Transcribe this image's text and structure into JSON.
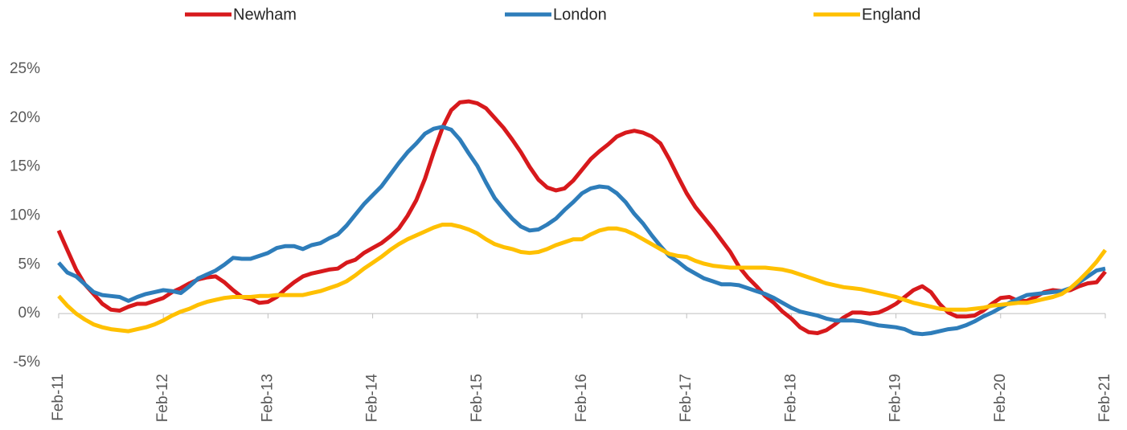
{
  "chart_data": {
    "type": "line",
    "categories": [
      "Feb-11",
      null,
      null,
      null,
      null,
      null,
      null,
      null,
      null,
      null,
      null,
      null,
      "Feb-12",
      null,
      null,
      null,
      null,
      null,
      null,
      null,
      null,
      null,
      null,
      null,
      "Feb-13",
      null,
      null,
      null,
      null,
      null,
      null,
      null,
      null,
      null,
      null,
      null,
      "Feb-14",
      null,
      null,
      null,
      null,
      null,
      null,
      null,
      null,
      null,
      null,
      null,
      "Feb-15",
      null,
      null,
      null,
      null,
      null,
      null,
      null,
      null,
      null,
      null,
      null,
      "Feb-16",
      null,
      null,
      null,
      null,
      null,
      null,
      null,
      null,
      null,
      null,
      null,
      "Feb-17",
      null,
      null,
      null,
      null,
      null,
      null,
      null,
      null,
      null,
      null,
      null,
      "Feb-18",
      null,
      null,
      null,
      null,
      null,
      null,
      null,
      null,
      null,
      null,
      null,
      "Feb-19",
      null,
      null,
      null,
      null,
      null,
      null,
      null,
      null,
      null,
      null,
      null,
      "Feb-20",
      null,
      null,
      null,
      null,
      null,
      null,
      null,
      null,
      null,
      null,
      null,
      "Feb-21"
    ],
    "series": [
      {
        "name": "Newham",
        "color": "#d7191c",
        "values": [
          8.5,
          6.5,
          4.5,
          3,
          2,
          1,
          0.4,
          0.3,
          0.7,
          1,
          1,
          1.3,
          1.6,
          2.2,
          2.6,
          3.1,
          3.5,
          3.7,
          3.8,
          3.2,
          2.4,
          1.7,
          1.5,
          1.1,
          1.2,
          1.7,
          2.5,
          3.2,
          3.8,
          4.1,
          4.3,
          4.5,
          4.6,
          5.2,
          5.5,
          6.2,
          6.7,
          7.2,
          7.9,
          8.7,
          10,
          11.6,
          13.8,
          16.5,
          19,
          20.8,
          21.6,
          21.7,
          21.5,
          21,
          20,
          19,
          17.8,
          16.5,
          15,
          13.7,
          12.9,
          12.6,
          12.8,
          13.6,
          14.7,
          15.8,
          16.6,
          17.3,
          18.1,
          18.5,
          18.7,
          18.5,
          18.1,
          17.4,
          15.8,
          14,
          12.3,
          10.9,
          9.8,
          8.7,
          7.5,
          6.3,
          4.8,
          3.7,
          2.8,
          1.8,
          1.1,
          0.2,
          -0.5,
          -1.4,
          -1.9,
          -2,
          -1.7,
          -1.1,
          -0.4,
          0.1,
          0.1,
          0,
          0.1,
          0.5,
          1,
          1.7,
          2.4,
          2.8,
          2.2,
          1,
          0.1,
          -0.3,
          -0.3,
          -0.2,
          0.3,
          1,
          1.6,
          1.7,
          1.3,
          1.3,
          1.7,
          2.2,
          2.4,
          2.3,
          2.4,
          2.8,
          3.1,
          3.2,
          4.3
        ]
      },
      {
        "name": "London",
        "color": "#2e7dba",
        "values": [
          5.2,
          4.2,
          3.8,
          3,
          2.2,
          1.9,
          1.8,
          1.7,
          1.3,
          1.7,
          2,
          2.2,
          2.4,
          2.3,
          2.1,
          2.8,
          3.6,
          4,
          4.4,
          5,
          5.7,
          5.6,
          5.6,
          5.9,
          6.2,
          6.7,
          6.9,
          6.9,
          6.6,
          7,
          7.2,
          7.7,
          8.1,
          9,
          10.1,
          11.2,
          12.1,
          13,
          14.2,
          15.4,
          16.5,
          17.4,
          18.4,
          18.9,
          19.1,
          18.8,
          17.8,
          16.4,
          15.1,
          13.4,
          11.8,
          10.7,
          9.7,
          8.9,
          8.5,
          8.6,
          9.1,
          9.7,
          10.6,
          11.4,
          12.3,
          12.8,
          13,
          12.9,
          12.3,
          11.4,
          10.2,
          9.2,
          8,
          6.9,
          5.9,
          5.3,
          4.6,
          4.1,
          3.6,
          3.3,
          3,
          3,
          2.9,
          2.6,
          2.3,
          2,
          1.6,
          1.1,
          0.6,
          0.2,
          0,
          -0.2,
          -0.5,
          -0.7,
          -0.7,
          -0.7,
          -0.8,
          -1,
          -1.2,
          -1.3,
          -1.4,
          -1.6,
          -2,
          -2.1,
          -2,
          -1.8,
          -1.6,
          -1.5,
          -1.2,
          -0.8,
          -0.3,
          0.1,
          0.6,
          1.1,
          1.5,
          1.9,
          2,
          2.1,
          2.2,
          2.3,
          2.6,
          3.2,
          3.8,
          4.4,
          4.6
        ]
      },
      {
        "name": "England",
        "color": "#ffc000",
        "values": [
          1.8,
          0.8,
          0,
          -0.6,
          -1.1,
          -1.4,
          -1.6,
          -1.7,
          -1.8,
          -1.6,
          -1.4,
          -1.1,
          -0.7,
          -0.2,
          0.2,
          0.5,
          0.9,
          1.2,
          1.4,
          1.6,
          1.7,
          1.7,
          1.7,
          1.8,
          1.8,
          1.9,
          1.9,
          1.9,
          1.9,
          2.1,
          2.3,
          2.6,
          2.9,
          3.3,
          3.9,
          4.6,
          5.2,
          5.8,
          6.5,
          7.1,
          7.6,
          8,
          8.4,
          8.8,
          9.1,
          9.1,
          8.9,
          8.6,
          8.2,
          7.6,
          7.1,
          6.8,
          6.6,
          6.3,
          6.2,
          6.3,
          6.6,
          7,
          7.3,
          7.6,
          7.6,
          8.1,
          8.5,
          8.7,
          8.7,
          8.5,
          8.1,
          7.6,
          7.1,
          6.6,
          6.1,
          5.9,
          5.8,
          5.4,
          5.1,
          4.9,
          4.8,
          4.7,
          4.7,
          4.7,
          4.7,
          4.7,
          4.6,
          4.5,
          4.3,
          4,
          3.7,
          3.4,
          3.1,
          2.9,
          2.7,
          2.6,
          2.5,
          2.3,
          2.1,
          1.9,
          1.7,
          1.4,
          1.1,
          0.9,
          0.7,
          0.5,
          0.4,
          0.4,
          0.4,
          0.5,
          0.6,
          0.8,
          0.9,
          1,
          1.1,
          1.1,
          1.3,
          1.5,
          1.7,
          2,
          2.6,
          3.4,
          4.3,
          5.3,
          6.5
        ]
      }
    ],
    "ylim": [
      -5,
      25
    ],
    "yticks": [
      {
        "value": -5,
        "label": "-5%"
      },
      {
        "value": 0,
        "label": "0%"
      },
      {
        "value": 5,
        "label": "5%"
      },
      {
        "value": 10,
        "label": "10%"
      },
      {
        "value": 15,
        "label": "15%"
      },
      {
        "value": 20,
        "label": "20%"
      },
      {
        "value": 25,
        "label": "25%"
      }
    ],
    "legend": "top",
    "grid": false
  }
}
